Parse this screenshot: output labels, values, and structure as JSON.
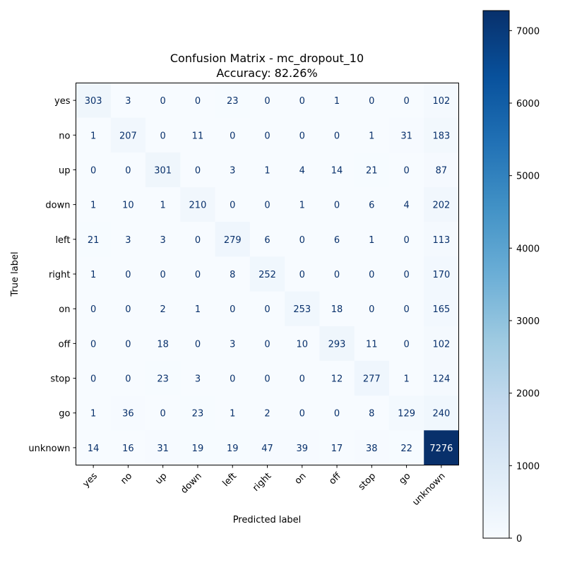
{
  "chart_data": {
    "type": "heatmap",
    "title": "Confusion Matrix - mc_dropout_10",
    "subtitle": "Accuracy: 82.26%",
    "xlabel": "Predicted label",
    "ylabel": "True label",
    "labels": [
      "yes",
      "no",
      "up",
      "down",
      "left",
      "right",
      "on",
      "off",
      "stop",
      "go",
      "unknown"
    ],
    "matrix": [
      [
        303,
        3,
        0,
        0,
        23,
        0,
        0,
        1,
        0,
        0,
        102
      ],
      [
        1,
        207,
        0,
        11,
        0,
        0,
        0,
        0,
        1,
        31,
        183
      ],
      [
        0,
        0,
        301,
        0,
        3,
        1,
        4,
        14,
        21,
        0,
        87
      ],
      [
        1,
        10,
        1,
        210,
        0,
        0,
        1,
        0,
        6,
        4,
        202
      ],
      [
        21,
        3,
        3,
        0,
        279,
        6,
        0,
        6,
        1,
        0,
        113
      ],
      [
        1,
        0,
        0,
        0,
        8,
        252,
        0,
        0,
        0,
        0,
        170
      ],
      [
        0,
        0,
        2,
        1,
        0,
        0,
        253,
        18,
        0,
        0,
        165
      ],
      [
        0,
        0,
        18,
        0,
        3,
        0,
        10,
        293,
        11,
        0,
        102
      ],
      [
        0,
        0,
        23,
        3,
        0,
        0,
        0,
        12,
        277,
        1,
        124
      ],
      [
        1,
        36,
        0,
        23,
        1,
        2,
        0,
        0,
        8,
        129,
        240
      ],
      [
        14,
        16,
        31,
        19,
        19,
        47,
        39,
        17,
        38,
        22,
        7276
      ]
    ],
    "colormap": "Blues",
    "vmin": 0,
    "vmax": 7276,
    "colorbar_ticks": [
      0,
      1000,
      2000,
      3000,
      4000,
      5000,
      6000,
      7000
    ],
    "colors": {
      "low": "#f7fbff",
      "high": "#08306b",
      "text_dark": "#08306b",
      "text_light": "#ffffff"
    }
  }
}
